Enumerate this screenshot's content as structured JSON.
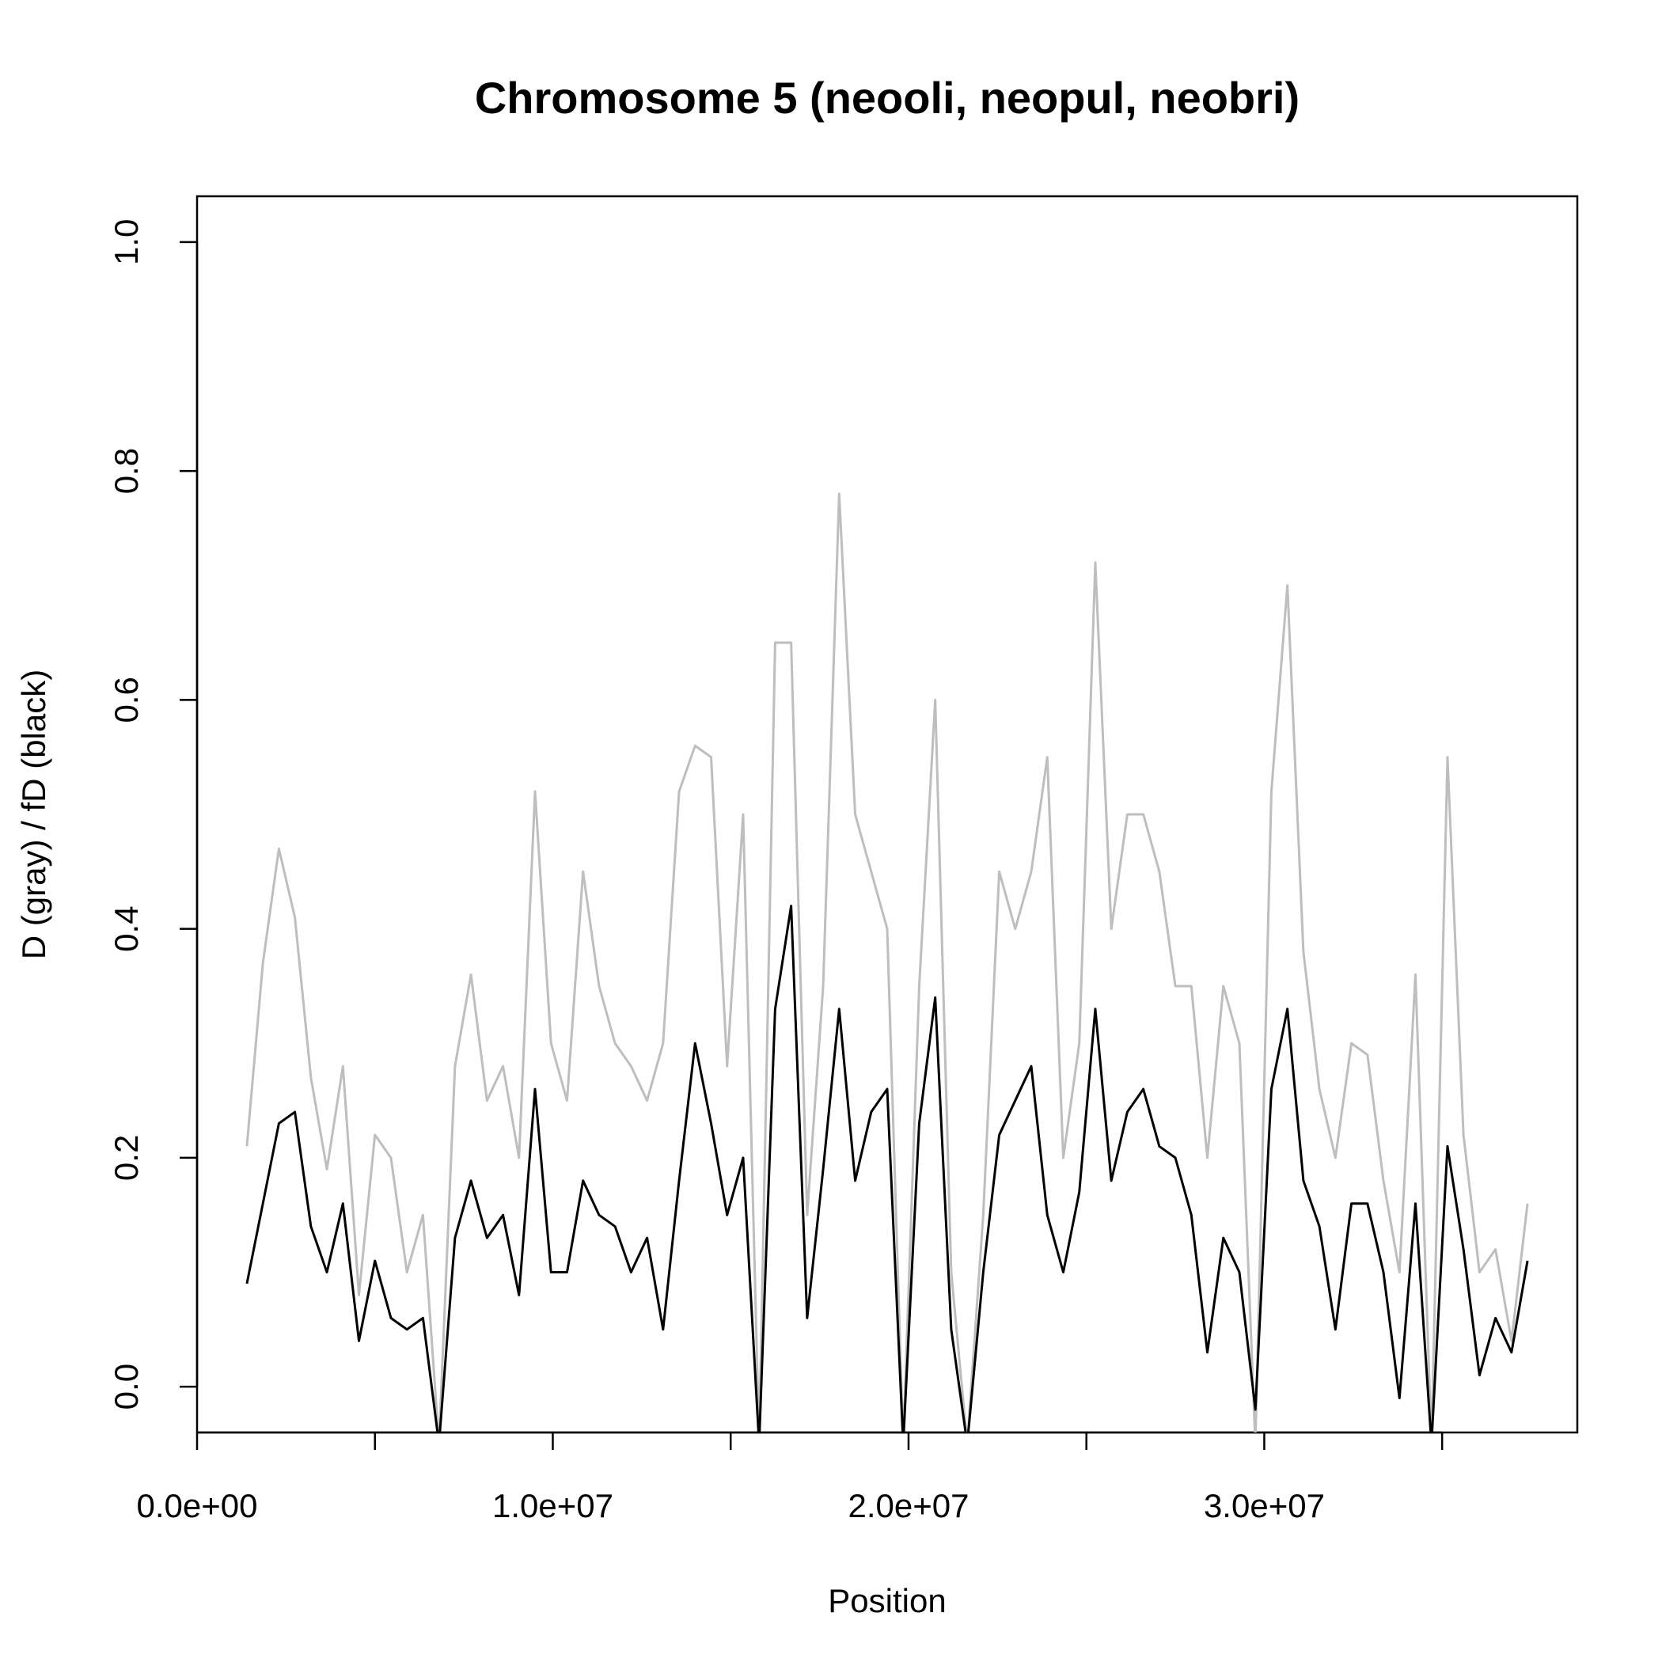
{
  "chart_data": {
    "type": "line",
    "title": "Chromosome 5 (neooli, neopul, neobri)",
    "x_label": "Position",
    "y_label": "D (gray) / fD (black)",
    "xlim": [
      0,
      38800000
    ],
    "ylim": [
      -0.04,
      1.04
    ],
    "xticks": [
      {
        "value": 0,
        "label": "0.0e+00"
      },
      {
        "value": 5000000,
        "label": null
      },
      {
        "value": 10000000,
        "label": "1.0e+07"
      },
      {
        "value": 15000000,
        "label": null
      },
      {
        "value": 20000000,
        "label": "2.0e+07"
      },
      {
        "value": 25000000,
        "label": null
      },
      {
        "value": 30000000,
        "label": "3.0e+07"
      },
      {
        "value": 35000000,
        "label": null
      }
    ],
    "yticks": [
      {
        "value": 0,
        "label": "0.0"
      },
      0.2,
      0.4,
      0.6,
      0.8,
      {
        "value": 1,
        "label": "1.0"
      }
    ],
    "x": [
      1400000,
      1850000,
      2300000,
      2750000,
      3200000,
      3650000,
      4100000,
      4550000,
      5000000,
      5450000,
      5900000,
      6350000,
      6800000,
      7250000,
      7700000,
      8150000,
      8600000,
      9050000,
      9500000,
      9950000,
      10400000,
      10850000,
      11300000,
      11750000,
      12200000,
      12650000,
      13100000,
      13550000,
      14000000,
      14450000,
      14900000,
      15350000,
      15800000,
      16250000,
      16700000,
      17150000,
      17600000,
      18050000,
      18500000,
      18950000,
      19400000,
      19850000,
      20300000,
      20750000,
      21200000,
      21650000,
      22100000,
      22550000,
      23000000,
      23450000,
      23900000,
      24350000,
      24800000,
      25250000,
      25700000,
      26150000,
      26600000,
      27050000,
      27500000,
      27950000,
      28400000,
      28850000,
      29300000,
      29750000,
      30200000,
      30650000,
      31100000,
      31550000,
      32000000,
      32450000,
      32900000,
      33350000,
      33800000,
      34250000,
      34700000,
      35150000,
      35600000,
      36050000,
      36500000,
      36950000,
      37400000
    ],
    "series": [
      {
        "color": "#bebebe",
        "values": [
          0.21,
          0.37,
          0.47,
          0.41,
          0.27,
          0.19,
          0.28,
          0.08,
          0.22,
          0.2,
          0.1,
          0.15,
          -0.05,
          0.28,
          0.36,
          0.25,
          0.28,
          0.2,
          0.52,
          0.3,
          0.25,
          0.45,
          0.35,
          0.3,
          0.28,
          0.25,
          0.3,
          0.52,
          0.56,
          0.55,
          0.28,
          0.5,
          -0.05,
          0.65,
          0.65,
          0.15,
          0.35,
          0.78,
          0.5,
          0.45,
          0.4,
          -0.05,
          0.35,
          0.6,
          0.1,
          -0.05,
          0.15,
          0.45,
          0.4,
          0.45,
          0.55,
          0.2,
          0.3,
          0.72,
          0.4,
          0.5,
          0.5,
          0.45,
          0.35,
          0.35,
          0.2,
          0.35,
          0.3,
          -0.05,
          0.52,
          0.7,
          0.38,
          0.26,
          0.2,
          0.3,
          0.29,
          0.18,
          0.1,
          0.36,
          -0.05,
          0.55,
          0.22,
          0.1,
          0.12,
          0.04,
          0.16
        ]
      },
      {
        "color": "#000000",
        "values": [
          0.09,
          0.16,
          0.23,
          0.24,
          0.14,
          0.1,
          0.16,
          0.04,
          0.11,
          0.06,
          0.05,
          0.06,
          -0.05,
          0.13,
          0.18,
          0.13,
          0.15,
          0.08,
          0.26,
          0.1,
          0.1,
          0.18,
          0.15,
          0.14,
          0.1,
          0.13,
          0.05,
          0.18,
          0.3,
          0.23,
          0.15,
          0.2,
          -0.05,
          0.33,
          0.42,
          0.06,
          0.19,
          0.33,
          0.18,
          0.24,
          0.26,
          -0.05,
          0.23,
          0.34,
          0.05,
          -0.05,
          0.1,
          0.22,
          0.25,
          0.28,
          0.15,
          0.1,
          0.17,
          0.33,
          0.18,
          0.24,
          0.26,
          0.21,
          0.2,
          0.15,
          0.03,
          0.13,
          0.1,
          -0.02,
          0.26,
          0.33,
          0.18,
          0.14,
          0.05,
          0.16,
          0.16,
          0.1,
          -0.01,
          0.16,
          -0.05,
          0.21,
          0.12,
          0.01,
          0.06,
          0.03,
          0.11
        ]
      }
    ]
  }
}
